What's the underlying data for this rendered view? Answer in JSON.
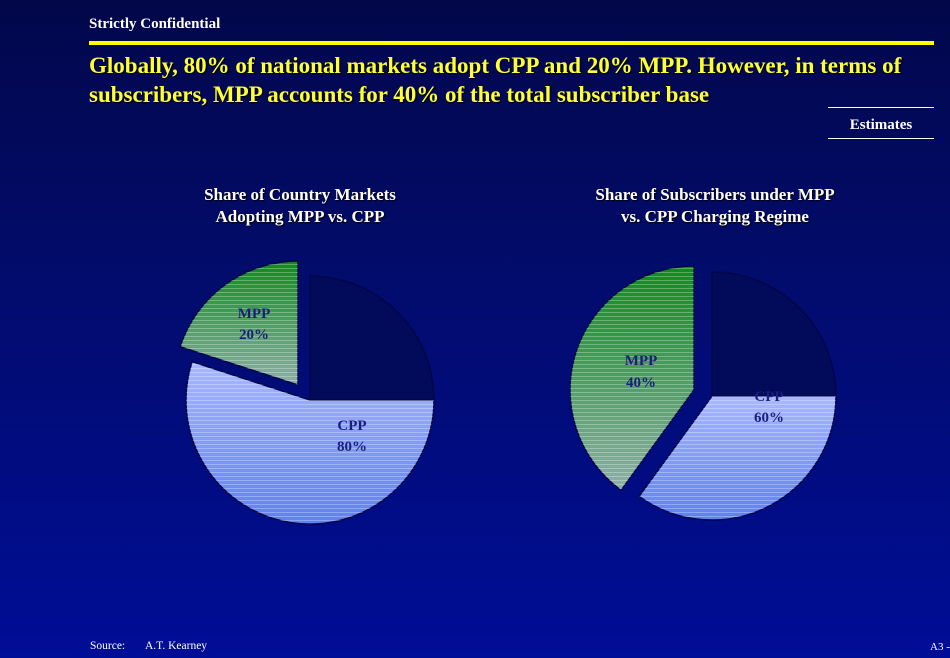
{
  "header": {
    "confidential": "Strictly Confidential",
    "headline": "Globally, 80% of national markets adopt CPP and 20% MPP. However, in terms of subscribers, MPP accounts for 40% of the total subscriber base",
    "estimates": "Estimates"
  },
  "colors": {
    "accent_yellow": "#ffff00",
    "background": "#020c6e",
    "cpp_light": "#8fa5ff",
    "mpp_green": "#1a8c2a",
    "outline_dark": "#01064a"
  },
  "chart_data": [
    {
      "type": "pie",
      "title_line1": "Share of Country Markets",
      "title_line2": "Adopting MPP vs. CPP",
      "slices": [
        {
          "name": "CPP",
          "value": 80,
          "label": "80%"
        },
        {
          "name": "MPP",
          "value": 20,
          "label": "20%"
        }
      ]
    },
    {
      "type": "pie",
      "title_line1": "Share of Subscribers under MPP",
      "title_line2": "vs. CPP Charging Regime",
      "slices": [
        {
          "name": "CPP",
          "value": 60,
          "label": "60%"
        },
        {
          "name": "MPP",
          "value": 40,
          "label": "40%"
        }
      ]
    }
  ],
  "footer": {
    "source_label": "Source:",
    "source_value": "A.T. Kearney",
    "page": "A3 -"
  }
}
